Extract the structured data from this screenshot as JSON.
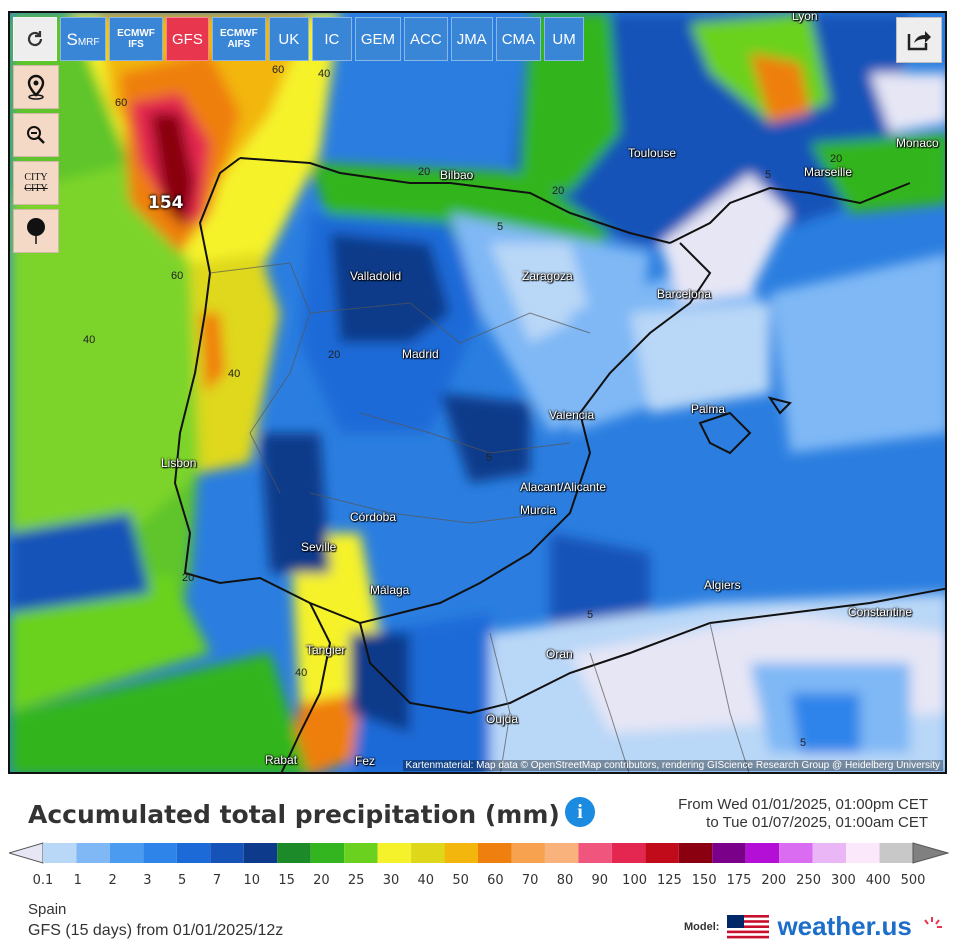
{
  "models": [
    {
      "label": "S",
      "sub": "MRF",
      "active": false
    },
    {
      "label": "ECMWF IFS",
      "sub": "",
      "active": false
    },
    {
      "label": "GFS",
      "sub": "",
      "active": true
    },
    {
      "label": "ECMWF AIFS",
      "sub": "",
      "active": false
    },
    {
      "label": "UK",
      "sub": "",
      "active": false
    },
    {
      "label": "IC",
      "sub": "",
      "active": false
    },
    {
      "label": "GEM",
      "sub": "",
      "active": false
    },
    {
      "label": "ACC",
      "sub": "",
      "active": false
    },
    {
      "label": "JMA",
      "sub": "",
      "active": false
    },
    {
      "label": "CMA",
      "sub": "",
      "active": false
    },
    {
      "label": "UM",
      "sub": "",
      "active": false
    }
  ],
  "tools": {
    "city_label": "CITY",
    "city_strike": "CITY"
  },
  "cities": {
    "lyon": "Lyon",
    "bilbao": "Bilbao",
    "toulouse": "Toulouse",
    "monaco": "Monaco",
    "marseille": "Marseille",
    "valladolid": "Valladolid",
    "zaragoza": "Zaragoza",
    "barcelona": "Barcelona",
    "madrid": "Madrid",
    "valencia": "Valencia",
    "palma": "Palma",
    "lisbon": "Lisbon",
    "alicante": "Alacant/Alicante",
    "murcia": "Murcia",
    "cordoba": "Córdoba",
    "seville": "Seville",
    "malaga": "Málaga",
    "algiers": "Algiers",
    "constantine": "Constantine",
    "oran": "Oran",
    "tangier": "Tangier",
    "oujda": "Oujda",
    "rabat": "Rabat",
    "fes": "Fez"
  },
  "contours": {
    "c60a": "60",
    "c40a": "40",
    "c60b": "60",
    "c60c": "60",
    "c40b": "40",
    "c20a": "20",
    "c20b": "20",
    "c5a": "5",
    "c5b": "5",
    "c20c": "20",
    "c20d": "20",
    "c40c": "40",
    "c5c": "5",
    "c20e": "20",
    "c40d": "40",
    "c5d": "5",
    "c5e": "5"
  },
  "max_value": "154",
  "attribution": "Kartenmaterial: Map data © OpenStreetMap contributors, rendering GIScience Research Group @ Heidelberg University",
  "title": "Accumulated total precipitation (mm)",
  "period_from": "From Wed 01/01/2025, 01:00pm CET",
  "period_to": "to Tue 01/07/2025, 01:00am CET",
  "legend": {
    "ticks": [
      "0.1",
      "1",
      "2",
      "3",
      "5",
      "7",
      "10",
      "15",
      "20",
      "25",
      "30",
      "40",
      "50",
      "60",
      "70",
      "80",
      "90",
      "100",
      "125",
      "150",
      "175",
      "200",
      "250",
      "300",
      "400",
      "500"
    ],
    "colors": [
      "#e6e6f5",
      "#b9d7f7",
      "#7fb8f5",
      "#4b9bf0",
      "#2f84ea",
      "#1c6ad8",
      "#1553b8",
      "#0d3a8a",
      "#1d8a2a",
      "#33b51f",
      "#6ad21e",
      "#f5f22c",
      "#dfd81a",
      "#f2b60c",
      "#ef7f0f",
      "#f7a24e",
      "#f9b27c",
      "#f0567d",
      "#e32750",
      "#c10a1a",
      "#8a0010",
      "#7a0089",
      "#b30fd6",
      "#d96cf0",
      "#eab6f5",
      "#fbe8fb",
      "#c8c8c8",
      "#808080"
    ]
  },
  "region": "Spain",
  "run": "GFS  (15 days)  from 01/01/2025/12z",
  "brand": {
    "model_label": "Model:",
    "site": "weather.us"
  }
}
